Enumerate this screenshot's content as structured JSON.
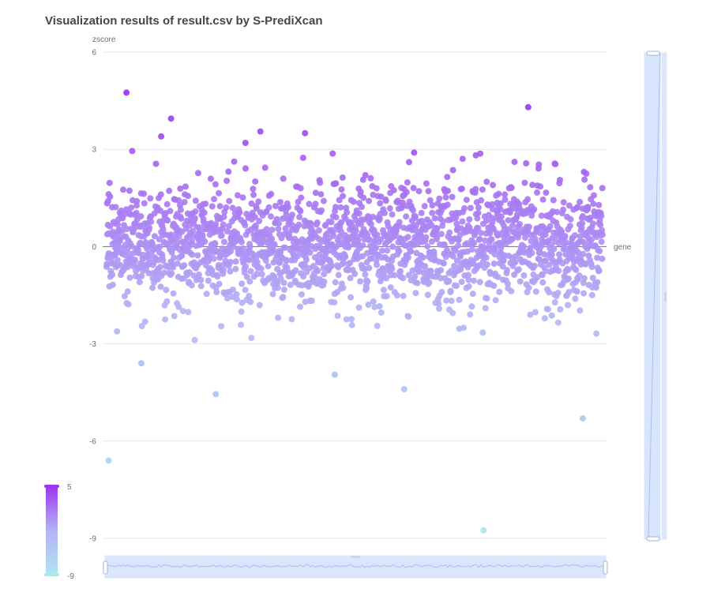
{
  "chart_data": {
    "type": "scatter",
    "title": "Visualization results of result.csv by S-PrediXcan",
    "xlabel": "gene",
    "ylabel": "zscore",
    "ylim": [
      -9,
      6
    ],
    "yticks": [
      "6",
      "3",
      "0",
      "-3",
      "-6",
      "-9"
    ],
    "grid": true,
    "visual_map": {
      "min": "-9",
      "max": "5",
      "color_low": "#aee6f0",
      "color_mid": "#b3b3f5",
      "color_high": "#9d36f0"
    },
    "point_count": 2000,
    "notable_points": [
      {
        "x": 0.004,
        "y": -6.6
      },
      {
        "x": 0.04,
        "y": 4.75
      },
      {
        "x": 0.07,
        "y": -3.6
      },
      {
        "x": 0.11,
        "y": 3.4
      },
      {
        "x": 0.13,
        "y": 3.95
      },
      {
        "x": 0.22,
        "y": -4.55
      },
      {
        "x": 0.28,
        "y": 3.2
      },
      {
        "x": 0.31,
        "y": 3.55
      },
      {
        "x": 0.4,
        "y": 3.5
      },
      {
        "x": 0.46,
        "y": -3.95
      },
      {
        "x": 0.6,
        "y": -4.4
      },
      {
        "x": 0.62,
        "y": 2.9
      },
      {
        "x": 0.76,
        "y": -8.75
      },
      {
        "x": 0.85,
        "y": 4.3
      },
      {
        "x": 0.96,
        "y": -5.3
      }
    ]
  },
  "x_zoom": {
    "start": 0,
    "end": 100
  },
  "y_zoom": {
    "start": 0,
    "end": 100
  }
}
